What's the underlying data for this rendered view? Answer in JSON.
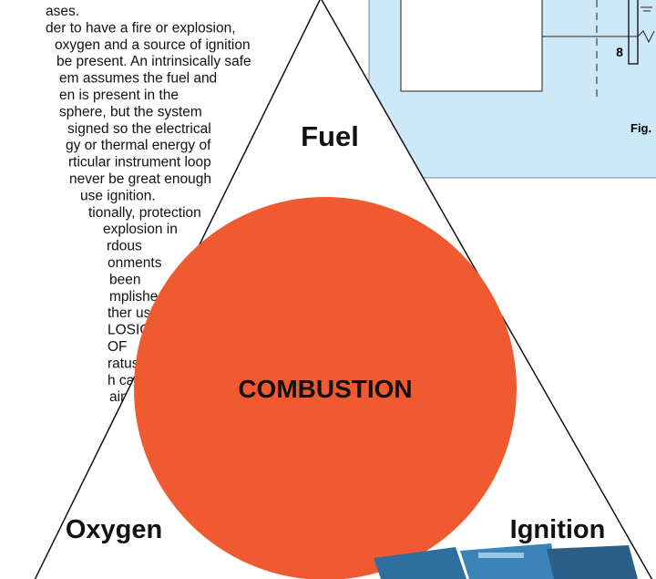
{
  "body_text": {
    "lines": [
      "ases.",
      "der to have a fire or explosion,",
      "oxygen and a source of ignition",
      "be present. An intrinsically safe",
      "em assumes the fuel and",
      "en is present in the",
      "sphere, but the system",
      "signed so the electrical",
      "gy or thermal energy of",
      "rticular instrument loop",
      "never be great enough",
      "use ignition.",
      "tionally, protection",
      "explosion in",
      "rdous",
      "onments",
      "been",
      "mplished",
      "ther using",
      "LOSION",
      "OF",
      "ratus",
      "h can",
      "ain"
    ]
  },
  "figure": {
    "label_number": "8",
    "caption": "Fig."
  },
  "triangle": {
    "top": "Fuel",
    "center": "COMBUSTION",
    "left": "Oxygen",
    "right": "Ignition"
  }
}
